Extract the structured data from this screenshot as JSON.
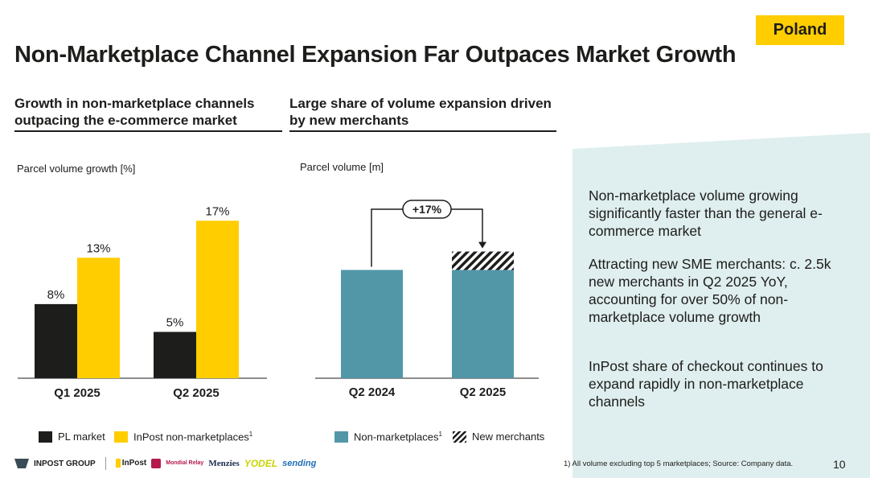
{
  "badge": "Poland",
  "title": "Non-Marketplace Channel Expansion Far Outpaces Market Growth",
  "left_section": {
    "heading_line1": "Growth in non-marketplace channels",
    "heading_line2": "outpacing the e-commerce market",
    "axis_label": "Parcel volume growth [%]",
    "legend": [
      {
        "label": "PL market",
        "color": "#1d1d1b"
      },
      {
        "label": "InPost non-marketplaces",
        "sup": "1",
        "color": "#ffcd00"
      }
    ]
  },
  "middle_section": {
    "heading_line1": "Large share of volume expansion driven",
    "heading_line2": "by new merchants",
    "axis_label": "Parcel volume [m]",
    "growth_label": "+17%",
    "legend": [
      {
        "label": "Non-marketplaces",
        "sup": "1",
        "color": "#5297a8"
      },
      {
        "label": "New merchants",
        "pattern": "hatched"
      }
    ]
  },
  "chart_data": [
    {
      "type": "bar",
      "categories": [
        "Q1 2025",
        "Q2 2025"
      ],
      "series": [
        {
          "name": "PL market",
          "values": [
            8,
            5
          ],
          "labels": [
            "8%",
            "5%"
          ],
          "color": "#1d1d1b"
        },
        {
          "name": "InPost non-marketplaces",
          "values": [
            13,
            17
          ],
          "labels": [
            "13%",
            "17%"
          ],
          "color": "#ffcd00"
        }
      ],
      "ylabel": "Parcel volume growth [%]",
      "ylim": [
        0,
        19
      ],
      "grid": false,
      "legend": "bottom"
    },
    {
      "type": "bar",
      "stacked": true,
      "categories": [
        "Q2 2024",
        "Q2 2025"
      ],
      "series": [
        {
          "name": "Non-marketplaces",
          "values": [
            100,
            100
          ],
          "color": "#5297a8"
        },
        {
          "name": "New merchants",
          "values": [
            0,
            17
          ],
          "pattern": "hatched"
        }
      ],
      "annotation": "+17%",
      "ylabel": "Parcel volume [m]",
      "ylim": [
        0,
        165
      ],
      "grid": false,
      "legend": "bottom"
    }
  ],
  "panel": {
    "paragraphs": [
      "Non-marketplace volume growing significantly faster than the general e-commerce market",
      "Attracting new SME merchants: c. 2.5k new merchants in Q2 2025 YoY, accounting for over 50% of non-marketplace volume growth",
      "InPost share of checkout continues to expand rapidly in non-marketplace channels"
    ],
    "color": "#dfeeee"
  },
  "footer": {
    "logos": [
      "INPOST GROUP",
      "InPost",
      "Mondial Relay",
      "Menzies",
      "YODEL",
      "sending"
    ],
    "note": "1) All volume excluding top 5 marketplaces; Source: Company data.",
    "page": "10"
  }
}
